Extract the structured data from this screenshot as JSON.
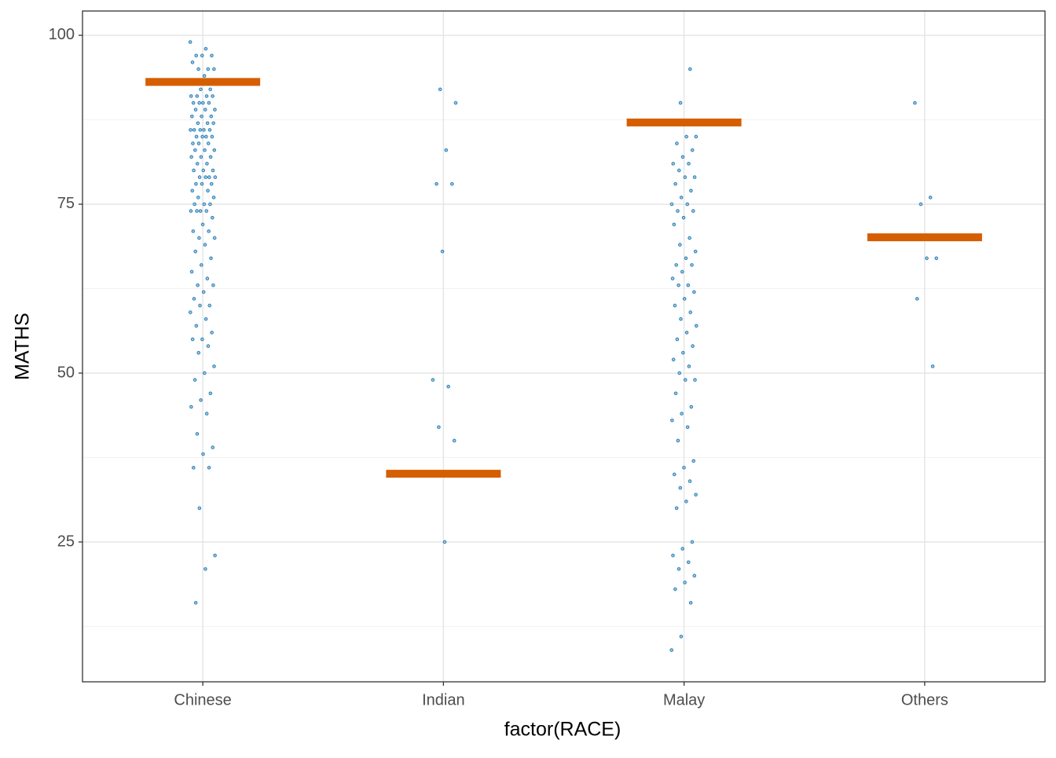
{
  "chart_data": {
    "type": "strip",
    "x_label": "factor(RACE)",
    "y_label": "MATHS",
    "categories": [
      "Chinese",
      "Indian",
      "Malay",
      "Others"
    ],
    "points": [
      [
        99,
        98,
        97,
        97,
        97,
        96,
        95,
        95,
        95,
        94,
        93,
        92,
        92,
        91,
        91,
        91,
        91,
        90,
        90,
        90,
        90,
        89,
        89,
        89,
        88,
        88,
        88,
        87,
        87,
        87,
        86,
        86,
        86,
        86,
        86,
        85,
        85,
        85,
        85,
        84,
        84,
        84,
        83,
        83,
        83,
        82,
        82,
        82,
        81,
        81,
        80,
        80,
        80,
        79,
        79,
        79,
        79,
        78,
        78,
        78,
        77,
        77,
        76,
        76,
        75,
        75,
        75,
        74,
        74,
        74,
        74,
        73,
        72,
        71,
        71,
        70,
        70,
        69,
        68,
        67,
        66,
        65,
        64,
        63,
        63,
        62,
        61,
        60,
        60,
        59,
        58,
        57,
        56,
        55,
        55,
        54,
        53,
        51,
        50,
        49,
        47,
        46,
        45,
        44,
        41,
        39,
        38,
        36,
        36,
        30,
        23,
        21,
        16
      ],
      [
        92,
        90,
        83,
        78,
        78,
        68,
        49,
        48,
        42,
        40,
        25
      ],
      [
        95,
        90,
        85,
        85,
        84,
        83,
        82,
        81,
        81,
        80,
        79,
        79,
        78,
        77,
        76,
        75,
        75,
        74,
        74,
        73,
        72,
        70,
        69,
        68,
        67,
        66,
        66,
        65,
        64,
        63,
        63,
        62,
        61,
        60,
        59,
        58,
        57,
        56,
        55,
        54,
        53,
        52,
        51,
        50,
        49,
        49,
        47,
        45,
        44,
        43,
        42,
        40,
        37,
        36,
        35,
        34,
        33,
        32,
        31,
        30,
        25,
        24,
        23,
        22,
        21,
        20,
        19,
        18,
        16,
        11,
        9
      ],
      [
        90,
        76,
        75,
        67,
        67,
        61,
        51
      ]
    ],
    "point_color": "#2c7fb8",
    "summary_values": [
      93.1,
      35.1,
      87.1,
      70.1
    ],
    "summary_color": "#d55e00",
    "ylim": [
      4.3,
      103.6
    ],
    "yticks": [
      25,
      50,
      75,
      100
    ],
    "y_minor_ticks": [
      12.5,
      37.5,
      62.5,
      87.5
    ],
    "grid": true
  }
}
